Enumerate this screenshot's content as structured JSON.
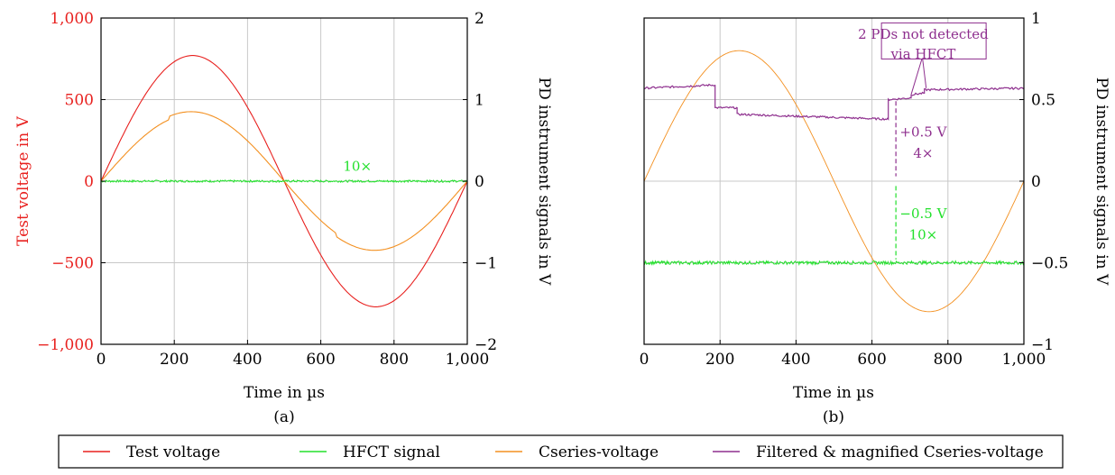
{
  "chart_data": [
    {
      "type": "line",
      "panel_label": "(a)",
      "xlabel": "Time in µs",
      "ylabel_left": "Test voltage in V",
      "ylabel_right": "PD instrument signals in V",
      "xlim": [
        0,
        1000
      ],
      "ylim_left": [
        -1000,
        1000
      ],
      "ylim_right": [
        -2,
        2
      ],
      "x_ticks": [
        "0",
        "200",
        "400",
        "600",
        "800",
        "1,000"
      ],
      "y_ticks_left": [
        "1,000",
        "500",
        "0",
        "−500",
        "−1,000"
      ],
      "y_ticks_right": [
        "2",
        "1",
        "0",
        "−1",
        "−2"
      ],
      "grid": true,
      "series": [
        {
          "name": "Test voltage",
          "axis": "left",
          "color": "#e8211f",
          "kind": "sine",
          "amplitude": 770,
          "period_us": 1000
        },
        {
          "name": "Cseries-voltage",
          "axis": "right",
          "color": "#f39020",
          "kind": "sine_steps",
          "amplitude": 0.82,
          "steps": [
            {
              "x": 187,
              "dy": 0.04
            },
            {
              "x": 643,
              "dy": -0.04
            }
          ]
        },
        {
          "name": "HFCT signal",
          "axis": "right",
          "color": "#22e02b",
          "kind": "noise_spikes",
          "offset": 0,
          "spikes": [
            {
              "x": 187,
              "dy": 0.16
            },
            {
              "x": 643,
              "dy": -0.16
            }
          ]
        }
      ],
      "annotations": [
        {
          "text": "10×",
          "x": 700,
          "y_right": 0.18,
          "color": "#22e02b"
        }
      ]
    },
    {
      "type": "line",
      "panel_label": "(b)",
      "xlabel": "Time in µs",
      "ylabel_right": "PD instrument signals in V",
      "xlim": [
        0,
        1000
      ],
      "ylim_right": [
        -1,
        1
      ],
      "x_ticks": [
        "0",
        "200",
        "400",
        "600",
        "800",
        "1,000"
      ],
      "y_ticks_right": [
        "1",
        "0.5",
        "0",
        "−0.5",
        "−1"
      ],
      "grid": true,
      "series": [
        {
          "name": "Cseries-voltage",
          "axis": "right",
          "color": "#f39020",
          "kind": "sine",
          "amplitude": 0.8
        },
        {
          "name": "Filtered & magnified Cseries-voltage",
          "axis": "right",
          "color": "#8e2f8e",
          "kind": "steps",
          "points": [
            [
              0,
              0.57
            ],
            [
              187,
              0.59
            ],
            [
              187,
              0.45
            ],
            [
              245,
              0.45
            ],
            [
              245,
              0.41
            ],
            [
              643,
              0.38
            ],
            [
              643,
              0.5
            ],
            [
              703,
              0.51
            ],
            [
              703,
              0.53
            ],
            [
              738,
              0.54
            ],
            [
              738,
              0.56
            ],
            [
              1000,
              0.57
            ]
          ]
        },
        {
          "name": "HFCT signal",
          "axis": "right",
          "color": "#22e02b",
          "kind": "noise_spikes",
          "offset": -0.5,
          "spikes": [
            {
              "x": 187,
              "dy": 0.16
            },
            {
              "x": 643,
              "dy": -0.12
            }
          ]
        }
      ],
      "annotations": [
        {
          "text": "2 PDs not detected",
          "x": 735,
          "y_right": 0.9,
          "color": "#8e2f8e"
        },
        {
          "text": "via HFCT",
          "x": 735,
          "y_right": 0.78,
          "color": "#8e2f8e"
        },
        {
          "text": "+0.5 V",
          "x": 735,
          "y_right": 0.3,
          "color": "#8e2f8e"
        },
        {
          "text": "4×",
          "x": 735,
          "y_right": 0.17,
          "color": "#8e2f8e"
        },
        {
          "text": "−0.5 V",
          "x": 735,
          "y_right": -0.2,
          "color": "#22e02b"
        },
        {
          "text": "10×",
          "x": 735,
          "y_right": -0.33,
          "color": "#22e02b"
        }
      ]
    }
  ],
  "legend": {
    "items": [
      {
        "label": "Test voltage",
        "color": "#e8211f"
      },
      {
        "label": "HFCT signal",
        "color": "#22e02b"
      },
      {
        "label": "Cseries-voltage",
        "color": "#f39020"
      },
      {
        "label": "Filtered & magnified Cseries-voltage",
        "color": "#8e2f8e"
      }
    ]
  }
}
